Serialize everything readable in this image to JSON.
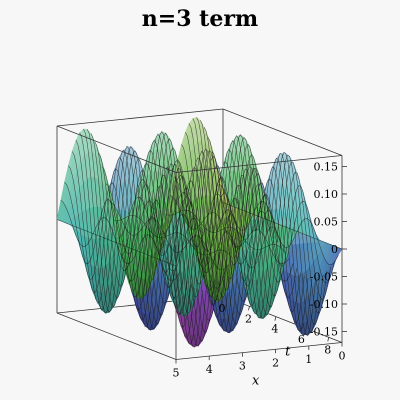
{
  "chart_data": {
    "type": "surface3d",
    "title": "n=3 term",
    "function": "0.16*sin(3*pi*x/5)*cos(3*pi*t/5)",
    "x": {
      "label": "x",
      "range": [
        0,
        5
      ],
      "ticks": [
        "0",
        "1",
        "2",
        "3",
        "4",
        "5"
      ]
    },
    "t": {
      "label": "t",
      "range": [
        0,
        9
      ],
      "ticks": [
        "0",
        "2",
        "4",
        "6",
        "8"
      ]
    },
    "z": {
      "label": "",
      "range": [
        -0.17,
        0.17
      ],
      "ticks": [
        "0.15",
        "0.10",
        "0.05",
        "0",
        "-0.05",
        "-0.10",
        "-0.15"
      ],
      "tick_values": [
        0.15,
        0.1,
        0.05,
        0,
        -0.05,
        -0.1,
        -0.15
      ]
    },
    "amplitude": 0.16,
    "grid": false,
    "colors": {
      "background": "#f7f7f7",
      "mesh": "#1a1a1a",
      "frame": "#333333"
    }
  }
}
